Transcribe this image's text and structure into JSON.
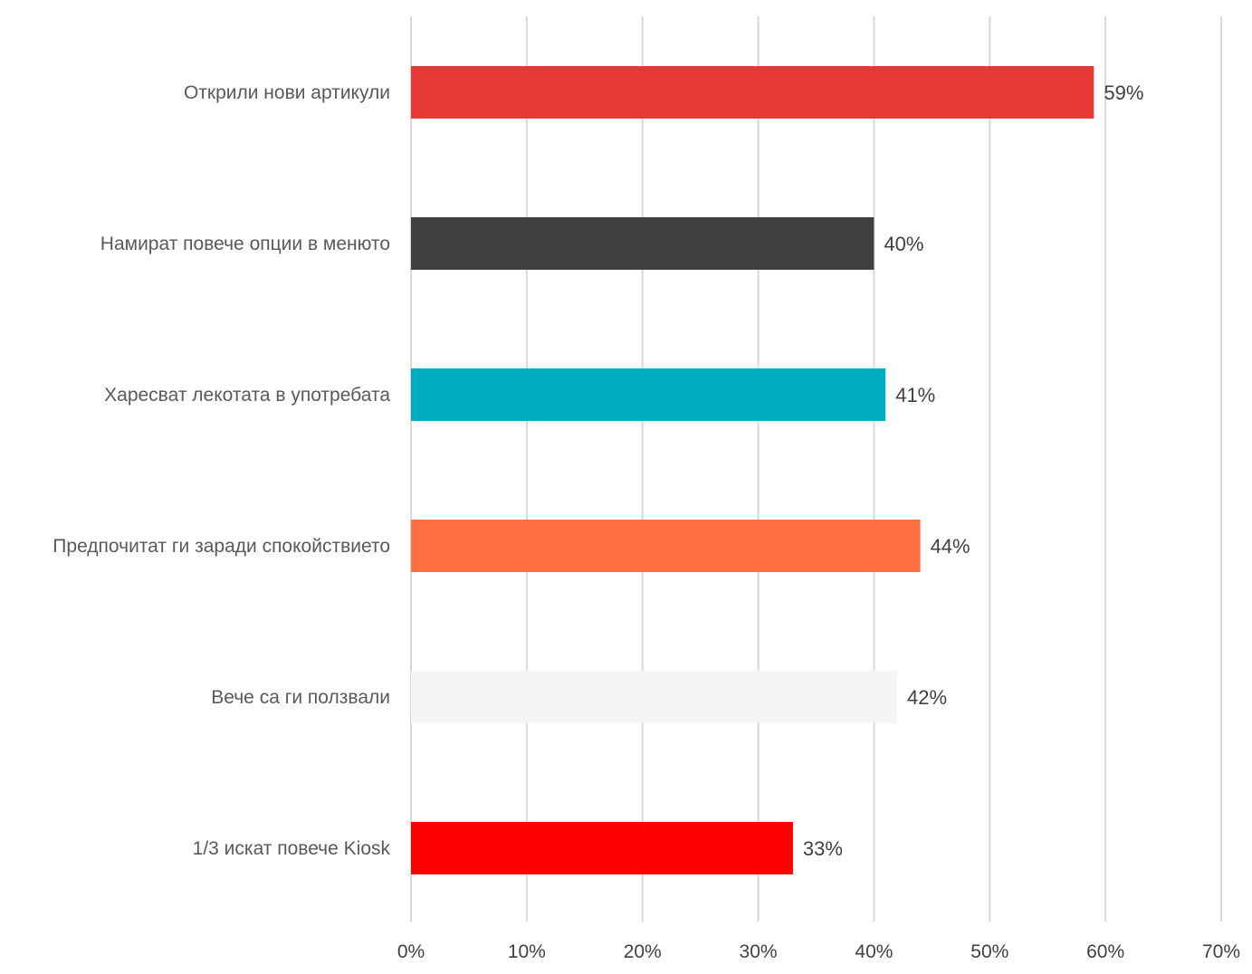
{
  "chart_data": {
    "type": "bar",
    "orientation": "horizontal",
    "categories": [
      "Открили нови артикули",
      "Намират повече опции в менюто",
      "Харесват лекотата в употребата",
      "Предпочитат ги заради спокойствието",
      "Вече са ги ползвали",
      "1/3 искат повече Kiosk"
    ],
    "values": [
      59,
      40,
      41,
      44,
      42,
      33
    ],
    "data_labels": [
      "59%",
      "40%",
      "41%",
      "44%",
      "42%",
      "33%"
    ],
    "colors": [
      "#e53935",
      "#404040",
      "#00acc1",
      "#ff7043",
      "#f5f5f5",
      "#ff0000"
    ],
    "x_ticks": [
      0,
      10,
      20,
      30,
      40,
      50,
      60,
      70
    ],
    "x_tick_labels": [
      "0%",
      "10%",
      "20%",
      "30%",
      "40%",
      "50%",
      "60%",
      "70%"
    ],
    "xlim": [
      0,
      70
    ],
    "title": "",
    "xlabel": "",
    "ylabel": "",
    "grid": "vertical",
    "legend": "none"
  }
}
